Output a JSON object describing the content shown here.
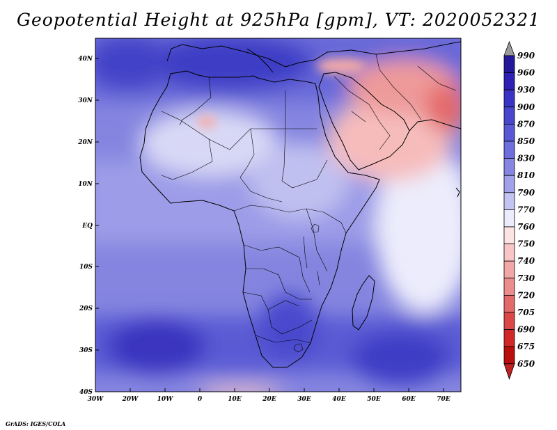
{
  "title": "Geopotential Height at 925hPa [gpm], VT: 2020052321",
  "credit": "GrADS: IGES/COLA",
  "map": {
    "lon_range": [
      -30,
      75
    ],
    "lat_range": [
      -40,
      45
    ],
    "lat_ticks": [
      "40N",
      "30N",
      "20N",
      "10N",
      "EQ",
      "10S",
      "20S",
      "30S",
      "40S"
    ],
    "lon_ticks": [
      "30W",
      "20W",
      "10W",
      "0",
      "10E",
      "20E",
      "30E",
      "40E",
      "50E",
      "60E",
      "70E"
    ]
  },
  "colorbar": {
    "levels": [
      "990",
      "960",
      "930",
      "900",
      "870",
      "850",
      "830",
      "810",
      "790",
      "770",
      "760",
      "750",
      "740",
      "730",
      "720",
      "705",
      "690",
      "675",
      "650"
    ],
    "colors": [
      "#9b9b9b",
      "#24179a",
      "#2e20b4",
      "#3a34c4",
      "#4846cc",
      "#5959d6",
      "#6e6edc",
      "#8686e2",
      "#a2a2ea",
      "#c4c4f2",
      "#ececfc",
      "#fce4e4",
      "#f8c6c6",
      "#f2a8a8",
      "#ec8c8c",
      "#e46a6a",
      "#dc4848",
      "#d02828",
      "#b80e0e",
      "#c02020"
    ]
  }
}
